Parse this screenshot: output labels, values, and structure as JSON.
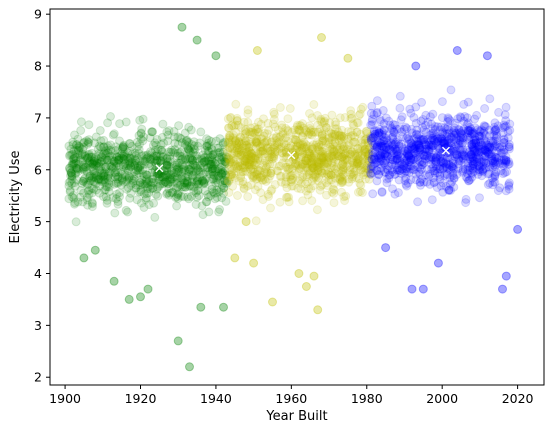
{
  "chart_data": {
    "type": "scatter",
    "title": "",
    "xlabel": "Year Built",
    "ylabel": "Electricity Use",
    "xlim": [
      1896,
      2027
    ],
    "ylim": [
      1.85,
      9.1
    ],
    "xticks": [
      1900,
      1920,
      1940,
      1960,
      1980,
      2000,
      2020
    ],
    "yticks": [
      2,
      3,
      4,
      5,
      6,
      7,
      8,
      9
    ],
    "grid": false,
    "legend": "none",
    "series": [
      {
        "color": "#008000",
        "x_range": [
          1901,
          1943
        ],
        "center": [
          1925,
          6.03
        ],
        "outliers": [
          [
            1933,
            2.2
          ],
          [
            1930,
            2.7
          ],
          [
            1936,
            3.35
          ],
          [
            1942,
            3.35
          ],
          [
            1920,
            3.55
          ],
          [
            1913,
            3.85
          ],
          [
            1917,
            3.5
          ],
          [
            1922,
            3.7
          ],
          [
            1908,
            4.45
          ],
          [
            1905,
            4.3
          ],
          [
            1931,
            8.75
          ],
          [
            1935,
            8.5
          ],
          [
            1940,
            8.2
          ]
        ]
      },
      {
        "color": "#bfbf00",
        "x_range": [
          1943,
          1981
        ],
        "center": [
          1960,
          6.28
        ],
        "outliers": [
          [
            1955,
            3.45
          ],
          [
            1967,
            3.3
          ],
          [
            1964,
            3.75
          ],
          [
            1966,
            3.95
          ],
          [
            1962,
            4.0
          ],
          [
            1945,
            4.3
          ],
          [
            1950,
            4.2
          ],
          [
            1948,
            5.0
          ],
          [
            1951,
            8.3
          ],
          [
            1968,
            8.55
          ],
          [
            1975,
            8.15
          ]
        ]
      },
      {
        "color": "#0000ff",
        "x_range": [
          1981,
          2018
        ],
        "center": [
          2001,
          6.37
        ],
        "outliers": [
          [
            1992,
            3.7
          ],
          [
            1995,
            3.7
          ],
          [
            2016,
            3.7
          ],
          [
            2017,
            3.95
          ],
          [
            2020,
            4.85
          ],
          [
            1985,
            4.5
          ],
          [
            1999,
            4.2
          ],
          [
            2004,
            8.3
          ],
          [
            1993,
            8.0
          ],
          [
            2012,
            8.2
          ]
        ]
      }
    ],
    "center_marker": "x"
  }
}
